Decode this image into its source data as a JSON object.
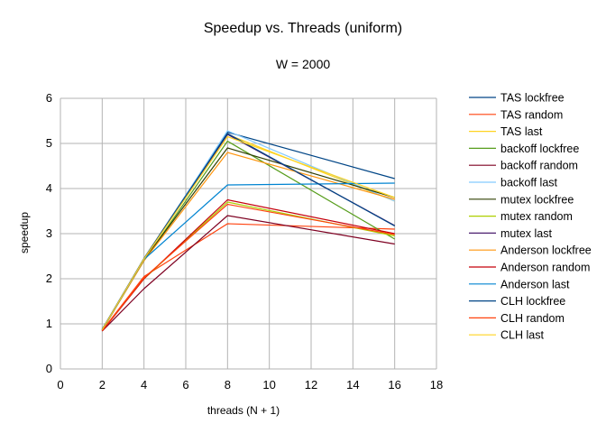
{
  "chart_data": {
    "type": "line",
    "title": "Speedup vs. Threads (uniform)",
    "subtitle": "W = 2000",
    "xlabel": "threads (N + 1)",
    "ylabel": "speedup",
    "xlim": [
      0,
      18
    ],
    "ylim": [
      0,
      6
    ],
    "xticks": [
      "0",
      "2",
      "4",
      "6",
      "8",
      "10",
      "12",
      "14",
      "16",
      "18"
    ],
    "yticks": [
      "0",
      "1",
      "2",
      "3",
      "4",
      "5",
      "6"
    ],
    "grid": "horizontal and vertical",
    "legend_position": "right",
    "x": [
      2,
      4,
      8,
      16
    ],
    "series": [
      {
        "name": "TAS lockfree",
        "color": "#004586",
        "values": [
          0.87,
          2.45,
          5.25,
          4.22
        ]
      },
      {
        "name": "TAS random",
        "color": "#ff420e",
        "values": [
          0.85,
          2.05,
          3.22,
          3.1
        ]
      },
      {
        "name": "TAS last",
        "color": "#ffd320",
        "values": [
          0.86,
          2.45,
          5.2,
          3.72
        ]
      },
      {
        "name": "backoff lockfree",
        "color": "#579d1c",
        "values": [
          0.88,
          2.4,
          5.05,
          2.88
        ]
      },
      {
        "name": "backoff random",
        "color": "#7e0021",
        "values": [
          0.84,
          1.78,
          3.4,
          2.77
        ]
      },
      {
        "name": "backoff last",
        "color": "#83caff",
        "values": [
          0.88,
          2.42,
          5.28,
          3.72
        ]
      },
      {
        "name": "mutex lockfree",
        "color": "#314004",
        "values": [
          0.87,
          2.42,
          4.9,
          3.8
        ]
      },
      {
        "name": "mutex random",
        "color": "#aecf00",
        "values": [
          0.85,
          2.0,
          3.7,
          2.95
        ]
      },
      {
        "name": "mutex last",
        "color": "#4b1f6f",
        "values": [
          0.86,
          2.44,
          5.2,
          3.18
        ]
      },
      {
        "name": "Anderson lockfree",
        "color": "#ff950e",
        "values": [
          0.85,
          2.4,
          4.8,
          3.76
        ]
      },
      {
        "name": "Anderson random",
        "color": "#c5000b",
        "values": [
          0.84,
          2.0,
          3.75,
          3.0
        ]
      },
      {
        "name": "Anderson last",
        "color": "#0084d1",
        "values": [
          0.86,
          2.43,
          4.08,
          4.12
        ]
      },
      {
        "name": "CLH lockfree",
        "color": "#004586",
        "values": [
          0.88,
          2.45,
          5.22,
          3.17
        ]
      },
      {
        "name": "CLH random",
        "color": "#ff420e",
        "values": [
          0.85,
          2.02,
          3.65,
          2.98
        ]
      },
      {
        "name": "CLH last",
        "color": "#ffd320",
        "values": [
          0.87,
          2.44,
          5.15,
          3.8
        ]
      }
    ]
  }
}
